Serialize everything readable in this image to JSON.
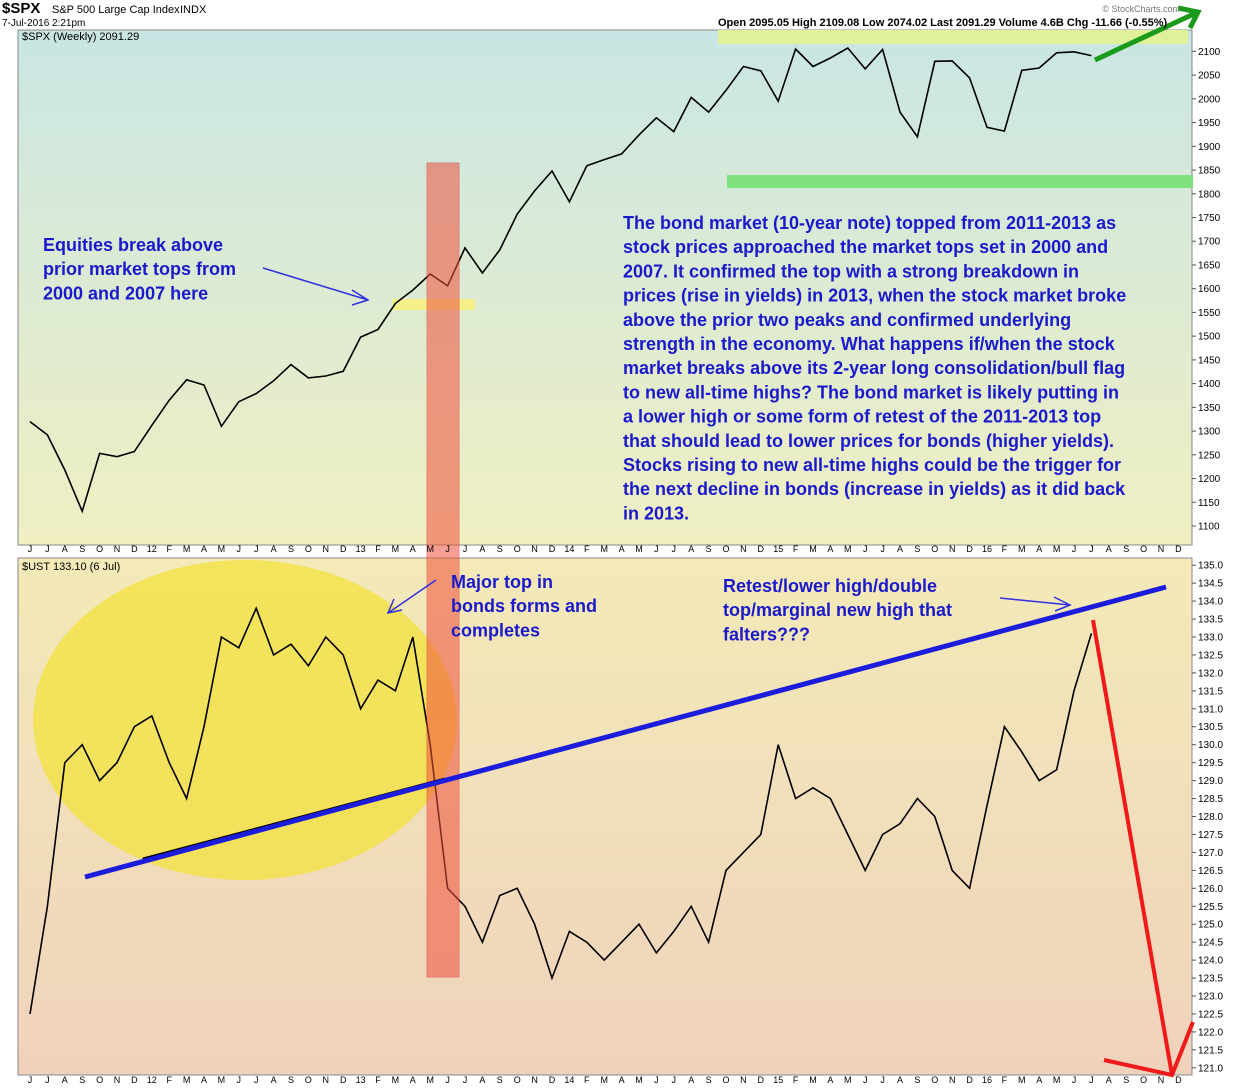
{
  "header": {
    "symbol": "$SPX",
    "name": "S&P 500 Large Cap Index",
    "exchange": "INDX",
    "date": "7-Jul-2016 2:21pm",
    "quote": "Open 2095.05  High 2109.08  Low 2074.02  Last 2091.29  Volume 4.6B  Chg -11.66 (-0.55%)",
    "credit": "© StockCharts.com"
  },
  "chart_data": [
    {
      "type": "line",
      "title": "$SPX (Weekly) 2091.29",
      "color": "#000000",
      "categories": [
        "J",
        "J",
        "A",
        "S",
        "O",
        "N",
        "D",
        "12",
        "F",
        "M",
        "A",
        "M",
        "J",
        "J",
        "A",
        "S",
        "O",
        "N",
        "D",
        "13",
        "F",
        "M",
        "A",
        "M",
        "J",
        "J",
        "A",
        "S",
        "O",
        "N",
        "D",
        "14",
        "F",
        "M",
        "A",
        "M",
        "J",
        "J",
        "A",
        "S",
        "O",
        "N",
        "D",
        "15",
        "F",
        "M",
        "A",
        "M",
        "J",
        "J",
        "A",
        "S",
        "O",
        "N",
        "D",
        "16",
        "F",
        "M",
        "A",
        "M",
        "J",
        "J",
        "A",
        "S",
        "O",
        "N",
        "D"
      ],
      "values": [
        1320,
        1292,
        1218,
        1131,
        1253,
        1246,
        1257,
        1312,
        1365,
        1408,
        1397,
        1310,
        1362,
        1379,
        1406,
        1440,
        1412,
        1416,
        1426,
        1498,
        1514,
        1569,
        1597,
        1631,
        1606,
        1686,
        1633,
        1682,
        1757,
        1806,
        1848,
        1783,
        1859,
        1872,
        1884,
        1924,
        1960,
        1931,
        2003,
        1972,
        2018,
        2068,
        2059,
        1995,
        2105,
        2068,
        2086,
        2107,
        2063,
        2104,
        1972,
        1920,
        2079,
        2080,
        2044,
        1940,
        1932,
        2060,
        2065,
        2097,
        2099,
        2091,
        null,
        null,
        null,
        null,
        null
      ],
      "ylim": [
        1060,
        2145
      ],
      "yticks": [
        1100,
        1150,
        1200,
        1250,
        1300,
        1350,
        1400,
        1450,
        1500,
        1550,
        1600,
        1650,
        1700,
        1750,
        1800,
        1850,
        1900,
        1950,
        2000,
        2050,
        2100
      ],
      "annotations": [
        {
          "lines": [
            "Equities break above",
            "prior market tops from",
            "2000 and 2007 here"
          ]
        },
        {
          "lines": [
            "The bond market (10-year note) topped from 2011-2013 as",
            "stock prices approached the market tops set in 2000 and",
            "2007. It confirmed the top with a strong breakdown in",
            "prices (rise in yields) in 2013, when the stock market broke",
            "above the prior two peaks and confirmed underlying",
            "strength in the economy. What happens if/when the stock",
            "market breaks above its 2-year long consolidation/bull flag",
            "to new all-time highs? The bond market is likely putting in",
            "a lower high or some form of retest of the 2011-2013 top",
            "that should lead to lower prices for bonds (higher yields).",
            "Stocks rising to new all-time highs could be the trigger for",
            "the next decline in bonds (increase in yields) as it did back",
            "in 2013."
          ]
        }
      ]
    },
    {
      "type": "line",
      "title": "$UST 133.10 (6 Jul)",
      "color": "#000000",
      "values": [
        122.5,
        125.5,
        129.5,
        130.0,
        129.0,
        129.5,
        130.5,
        130.8,
        129.5,
        128.5,
        130.5,
        133.0,
        132.7,
        133.8,
        132.5,
        132.8,
        132.2,
        133.0,
        132.5,
        131.0,
        131.8,
        131.5,
        133.0,
        130.0,
        126.0,
        125.5,
        124.5,
        125.8,
        126.0,
        125.0,
        123.5,
        124.8,
        124.5,
        124.0,
        124.5,
        125.0,
        124.2,
        124.8,
        125.5,
        124.5,
        126.5,
        127.0,
        127.5,
        130.0,
        128.5,
        128.8,
        128.5,
        127.5,
        126.5,
        127.5,
        127.8,
        128.5,
        128.0,
        126.5,
        126.0,
        128.3,
        130.5,
        129.8,
        129.0,
        129.3,
        131.5,
        133.1,
        null,
        null,
        null,
        null,
        null
      ],
      "ylim": [
        120.8,
        135.2
      ],
      "yticks": [
        {
          "value": 121,
          "label": "121.0"
        },
        121.5,
        {
          "value": 122,
          "label": "122.0"
        },
        122.5,
        {
          "value": 123,
          "label": "123.0"
        },
        123.5,
        {
          "value": 124,
          "label": "124.0"
        },
        124.5,
        {
          "value": 125,
          "label": "125.0"
        },
        125.5,
        {
          "value": 126,
          "label": "126.0"
        },
        126.5,
        {
          "value": 127,
          "label": "127.0"
        },
        127.5,
        {
          "value": 128,
          "label": "128.0"
        },
        128.5,
        {
          "value": 129,
          "label": "129.0"
        },
        129.5,
        {
          "value": 130,
          "label": "130.0"
        },
        130.5,
        {
          "value": 131,
          "label": "131.0"
        },
        131.5,
        {
          "value": 132,
          "label": "132.0"
        },
        132.5,
        {
          "value": 133,
          "label": "133.0"
        },
        133.5,
        {
          "value": 134,
          "label": "134.0"
        },
        134.5,
        {
          "value": 135,
          "label": "135.0"
        }
      ],
      "annotations": [
        {
          "lines": [
            "Major top in",
            "bonds forms and",
            "completes"
          ]
        },
        {
          "lines": [
            "Retest/lower high/double",
            "top/marginal new high that",
            "falters???"
          ]
        }
      ]
    }
  ]
}
